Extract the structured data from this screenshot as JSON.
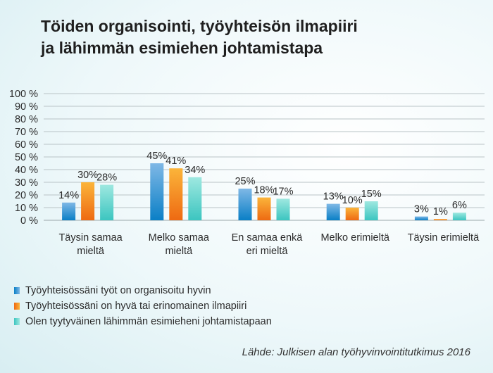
{
  "chart_data": {
    "type": "bar",
    "title_lines": [
      "Töiden organisointi, työyhteisön ilmapiiri",
      "ja lähimmän esimiehen johtamistapa"
    ],
    "categories": [
      [
        "Täysin samaa",
        "mieltä"
      ],
      [
        "Melko samaa",
        "mieltä"
      ],
      [
        "En samaa enkä",
        "eri mieltä"
      ],
      [
        "Melko erimieltä"
      ],
      [
        "Täysin erimieltä"
      ]
    ],
    "series": [
      {
        "name": "Työyhteisössäni työt on organisoitu hyvin",
        "values": [
          14,
          45,
          25,
          13,
          3
        ],
        "labels": [
          "14%",
          "45%",
          "25%",
          "13%",
          "3%"
        ],
        "color_top": "#7fb8e6",
        "color_bottom": "#0a7fc6"
      },
      {
        "name": "Työyhteisössäni on hyvä tai erinomainen ilmapiiri",
        "values": [
          30,
          41,
          18,
          10,
          1
        ],
        "labels": [
          "30%",
          "41%",
          "18%",
          "10%",
          "1%"
        ],
        "color_top": "#fbb43a",
        "color_bottom": "#ee6a12"
      },
      {
        "name": "Olen tyytyväinen lähimmän esimieheni johtamistapaan",
        "values": [
          28,
          34,
          17,
          15,
          6
        ],
        "labels": [
          "28%",
          "34%",
          "17%",
          "15%",
          "6%"
        ],
        "color_top": "#9ee8e0",
        "color_bottom": "#3cc5c0"
      }
    ],
    "ylim": [
      0,
      100
    ],
    "yticks": [
      "0 %",
      "10 %",
      "20 %",
      "30 %",
      "40 %",
      "50 %",
      "60 %",
      "70 %",
      "80 %",
      "90 %",
      "100 %"
    ],
    "source": "Lähde: Julkisen alan työhyvinvointitutkimus 2016"
  }
}
